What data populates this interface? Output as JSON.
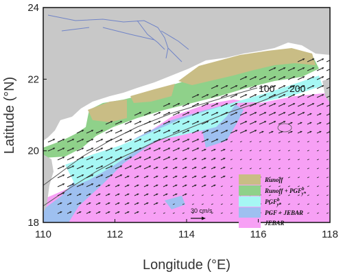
{
  "chart_data": {
    "type": "map",
    "title": "",
    "xlabel": "Longitude (°E)",
    "ylabel": "Latitude (°N)",
    "xlim": [
      110,
      118
    ],
    "ylim": [
      18,
      24
    ],
    "x_ticks": [
      "110",
      "112",
      "114",
      "116",
      "118"
    ],
    "y_ticks": [
      "18",
      "20",
      "22",
      "24"
    ],
    "contour_labels": [
      "100",
      "200"
    ],
    "scale_vector_label": "30 cm/s",
    "legend_placement": "bottom-right",
    "colors": {
      "land": "#c8c8c8",
      "runoff": "#c9bd85",
      "runoff_pgf": "#8fd18a",
      "pgf": "#a6f7f4",
      "pgf_jebar": "#9ec0f0",
      "jebar": "#f7a0f5",
      "ocean": "#ffffff"
    },
    "legend": [
      {
        "key": "runoff",
        "label": "Runoff"
      },
      {
        "key": "runoff_pgf",
        "label": "Runoff + PGF"
      },
      {
        "key": "pgf",
        "label": "PGF"
      },
      {
        "key": "pgf_jebar",
        "label": "PGF + JEBAR"
      },
      {
        "key": "jebar",
        "label": "JEBAR"
      }
    ],
    "legend_sub": "y*",
    "legend_sup": "b"
  }
}
